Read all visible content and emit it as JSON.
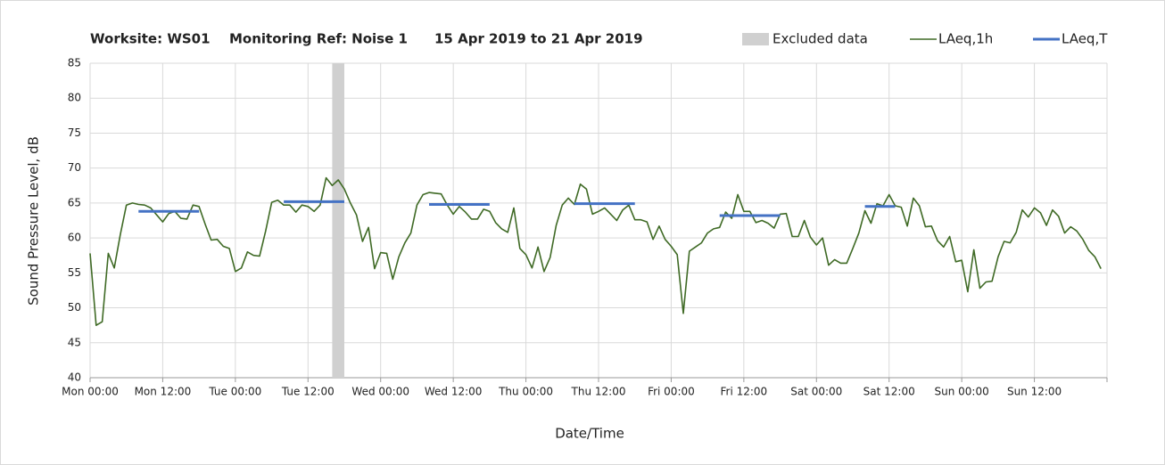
{
  "chart_data": {
    "type": "line",
    "title": [
      "Worksite: WS01",
      "Monitoring Ref: Noise 1",
      "15 Apr 2019 to 21 Apr 2019"
    ],
    "x_label": "Date/Time",
    "y_label": "Sound Pressure Level, dB",
    "xlim": [
      0,
      168
    ],
    "xticks": [
      {
        "value": 0,
        "label": "Mon 00:00"
      },
      {
        "value": 12,
        "label": "Mon 12:00"
      },
      {
        "value": 24,
        "label": "Tue 00:00"
      },
      {
        "value": 36,
        "label": "Tue 12:00"
      },
      {
        "value": 48,
        "label": "Wed 00:00"
      },
      {
        "value": 60,
        "label": "Wed 12:00"
      },
      {
        "value": 72,
        "label": "Thu 00:00"
      },
      {
        "value": 84,
        "label": "Thu 12:00"
      },
      {
        "value": 96,
        "label": "Fri 00:00"
      },
      {
        "value": 108,
        "label": "Fri 12:00"
      },
      {
        "value": 120,
        "label": "Sat 00:00"
      },
      {
        "value": 132,
        "label": "Sat 12:00"
      },
      {
        "value": 144,
        "label": "Sun 00:00"
      },
      {
        "value": 156,
        "label": "Sun 12:00"
      },
      168
    ],
    "ylim": [
      40,
      85
    ],
    "yticks": [
      40,
      45,
      50,
      55,
      60,
      65,
      70,
      75,
      80,
      85
    ],
    "grid": true,
    "legend": "top-right",
    "excluded": {
      "name": "Excluded data",
      "color": "#d0d0d0",
      "ranges": [
        [
          40,
          42
        ]
      ]
    },
    "series": [
      {
        "name": "LAeq,1h",
        "color": "#3f6a25",
        "x": [
          0,
          1,
          2,
          3,
          4,
          5,
          6,
          7,
          8,
          9,
          10,
          11,
          12,
          13,
          14,
          15,
          16,
          17,
          18,
          19,
          20,
          21,
          22,
          23,
          24,
          25,
          26,
          27,
          28,
          29,
          30,
          31,
          32,
          33,
          34,
          35,
          36,
          37,
          38,
          39,
          40,
          41,
          42,
          43,
          44,
          45,
          46,
          47,
          48,
          49,
          50,
          51,
          52,
          53,
          54,
          55,
          56,
          57,
          58,
          59,
          60,
          61,
          62,
          63,
          64,
          65,
          66,
          67,
          68,
          69,
          70,
          71,
          72,
          73,
          74,
          75,
          76,
          77,
          78,
          79,
          80,
          81,
          82,
          83,
          84,
          85,
          86,
          87,
          88,
          89,
          90,
          91,
          92,
          93,
          94,
          95,
          96,
          97,
          98,
          99,
          100,
          101,
          102,
          103,
          104,
          105,
          106,
          107,
          108,
          109,
          110,
          111,
          112,
          113,
          114,
          115,
          116,
          117,
          118,
          119,
          120,
          121,
          122,
          123,
          124,
          125,
          126,
          127,
          128,
          129,
          130,
          131,
          132,
          133,
          134,
          135,
          136,
          137,
          138,
          139,
          140,
          141,
          142,
          143,
          144,
          145,
          146,
          147,
          148,
          149,
          150,
          151,
          152,
          153,
          154,
          155,
          156,
          157,
          158,
          159,
          160,
          161,
          162,
          163,
          164,
          165,
          166,
          167
        ],
        "values": [
          57.8,
          47.5,
          48,
          57.8,
          55.7,
          60.5,
          64.7,
          65,
          64.8,
          64.7,
          64.3,
          63.3,
          62.3,
          63.5,
          63.8,
          62.8,
          62.7,
          64.7,
          64.5,
          62,
          59.7,
          59.8,
          58.8,
          58.5,
          55.2,
          55.7,
          58,
          57.5,
          57.4,
          61,
          65.1,
          65.4,
          64.7,
          64.7,
          63.7,
          64.7,
          64.5,
          63.8,
          64.7,
          68.6,
          67.5,
          68.3,
          67,
          65,
          63.3,
          59.5,
          61.5,
          55.6,
          57.9,
          57.8,
          54.1,
          57.3,
          59.3,
          60.7,
          64.7,
          66.2,
          66.5,
          66.4,
          66.3,
          64.7,
          63.4,
          64.5,
          63.7,
          62.7,
          62.7,
          64.1,
          63.8,
          62.2,
          61.3,
          60.8,
          64.3,
          58.5,
          57.6,
          55.7,
          58.7,
          55.2,
          57.2,
          61.8,
          64.7,
          65.7,
          64.8,
          67.7,
          67,
          63.4,
          63.8,
          64.3,
          63.4,
          62.5,
          64,
          64.7,
          62.6,
          62.6,
          62.3,
          59.8,
          61.7,
          59.8,
          58.8,
          57.6,
          49.2,
          58.1,
          58.7,
          59.3,
          60.7,
          61.3,
          61.5,
          63.7,
          62.8,
          66.2,
          63.8,
          63.8,
          62.2,
          62.5,
          62.1,
          61.4,
          63.4,
          63.5,
          60.2,
          60.2,
          62.5,
          60.1,
          59,
          60,
          56.1,
          56.9,
          56.4,
          56.4,
          58.5,
          60.7,
          63.9,
          62.1,
          64.9,
          64.6,
          66.2,
          64.6,
          64.4,
          61.7,
          65.7,
          64.6,
          61.6,
          61.7,
          59.6,
          58.7,
          60.2,
          56.6,
          56.8,
          52.3,
          58.3,
          52.8,
          53.7,
          53.8,
          57.3,
          59.5,
          59.3,
          60.8,
          64,
          63,
          64.3,
          63.6,
          61.8,
          64,
          63.1,
          60.7,
          61.6,
          61,
          59.8,
          58.2,
          57.3,
          55.6
        ]
      },
      {
        "name": "LAeq,T",
        "color": "#4472c4",
        "segments": [
          {
            "x": [
              8,
              18
            ],
            "value": 63.8
          },
          {
            "x": [
              32,
              42
            ],
            "value": 65.2
          },
          {
            "x": [
              56,
              66
            ],
            "value": 64.8
          },
          {
            "x": [
              80,
              90
            ],
            "value": 64.9
          },
          {
            "x": [
              104,
              114
            ],
            "value": 63.2
          },
          {
            "x": [
              128,
              133
            ],
            "value": 64.5
          }
        ]
      }
    ]
  }
}
